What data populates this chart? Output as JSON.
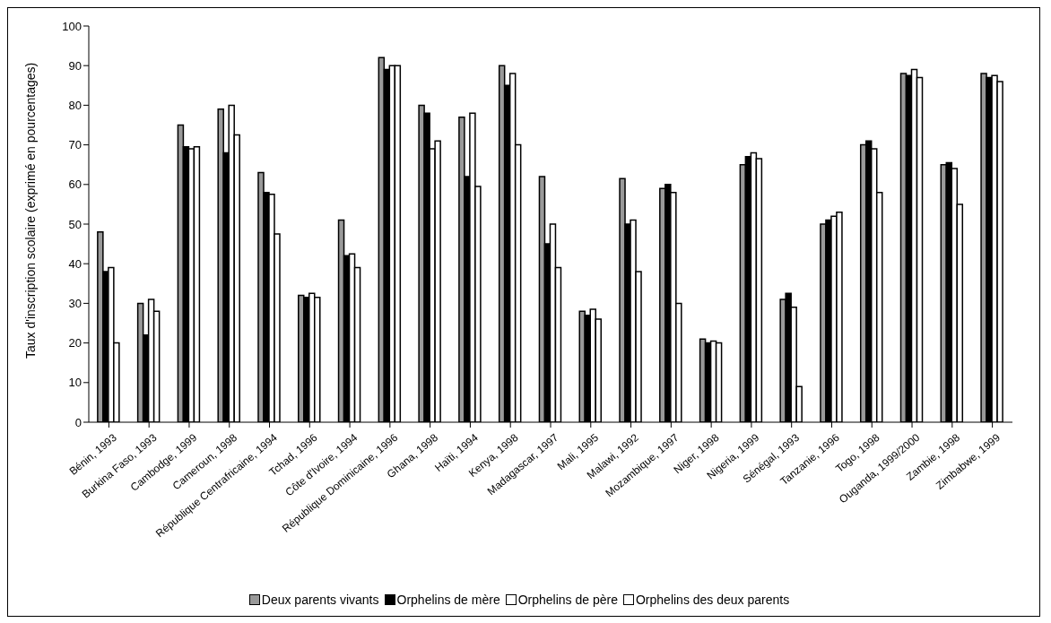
{
  "chart_data": {
    "type": "bar",
    "ylabel": "Taux d'inscription scolaire (exprimé en pourcentages)",
    "categories": [
      "Bénin, 1993",
      "Burkina Faso, 1993",
      "Cambodge, 1999",
      "Cameroun, 1998",
      "République Centrafricaine, 1994",
      "Tchad, 1996",
      "Côte d'Ivoire, 1994",
      "République Dominicaine, 1996",
      "Ghana, 1998",
      "Haïti, 1994",
      "Kenya, 1998",
      "Madagascar, 1997",
      "Mali, 1995",
      "Malawi, 1992",
      "Mozambique, 1997",
      "Niger, 1998",
      "Nigeria, 1999",
      "Sénégal, 1993",
      "Tanzanie, 1996",
      "Togo, 1998",
      "Ouganda, 1999/2000",
      "Zambie, 1998",
      "Zimbabwe, 1999"
    ],
    "series": [
      {
        "name": "Deux parents vivants",
        "color": "#999999",
        "values": [
          48,
          30,
          75,
          79,
          63,
          32,
          51,
          92,
          80,
          77,
          90,
          62,
          28,
          61.5,
          59,
          21,
          65,
          31,
          50,
          70,
          88,
          65,
          88
        ]
      },
      {
        "name": "Orphelins de mère",
        "color": "#000000",
        "values": [
          38,
          22,
          69.5,
          68,
          58,
          31.5,
          42,
          89,
          78,
          62,
          85,
          45,
          27,
          50,
          60,
          20,
          67,
          32.5,
          51,
          71,
          87.5,
          65.5,
          87
        ]
      },
      {
        "name": "Orphelins de père",
        "color": "#ffffff",
        "values": [
          39,
          31,
          69,
          80,
          57.5,
          32.5,
          42.5,
          90,
          69,
          78,
          88,
          50,
          28.5,
          51,
          58,
          20.5,
          68,
          29,
          52,
          69,
          89,
          64,
          87.5
        ]
      },
      {
        "name": "Orphelins des deux parents",
        "color": "#ffffff",
        "values": [
          20,
          28,
          69.5,
          72.5,
          47.5,
          31.5,
          39,
          90,
          71,
          59.5,
          70,
          39,
          26,
          38,
          30,
          20,
          66.5,
          9,
          53,
          58,
          87,
          55,
          86
        ]
      }
    ],
    "ylim": [
      0,
      100
    ],
    "yticks": [
      0,
      10,
      20,
      30,
      40,
      50,
      60,
      70,
      80,
      90,
      100
    ],
    "grid": false,
    "legend": "bottom"
  }
}
